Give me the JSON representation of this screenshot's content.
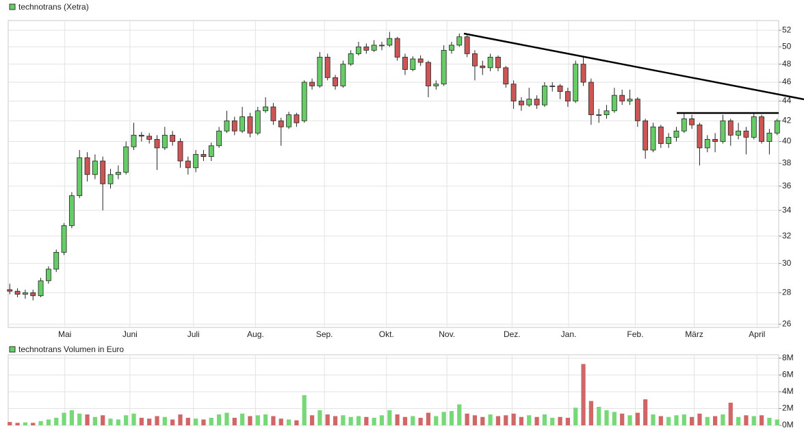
{
  "chart_data": [
    {
      "type": "candlestick",
      "title": "technotrans (Xetra)",
      "log_scale": true,
      "grid": true,
      "up_color": "#66cc66",
      "down_color": "#cc5555",
      "xlim": [
        -0.2,
        99.2
      ],
      "xticks": [
        {
          "value": 7.1,
          "label": "Mai"
        },
        {
          "value": 15.5,
          "label": "Juni"
        },
        {
          "value": 23.7,
          "label": "Juli"
        },
        {
          "value": 31.7,
          "label": "Aug."
        },
        {
          "value": 40.6,
          "label": "Sep."
        },
        {
          "value": 48.6,
          "label": "Okt."
        },
        {
          "value": 56.4,
          "label": "Nov."
        },
        {
          "value": 64.8,
          "label": "Dez."
        },
        {
          "value": 72.1,
          "label": "Jan."
        },
        {
          "value": 80.7,
          "label": "Feb."
        },
        {
          "value": 88.3,
          "label": "März"
        },
        {
          "value": 96.4,
          "label": "April"
        }
      ],
      "ylim": [
        25.8,
        53.2
      ],
      "yticks": [
        26,
        28,
        30,
        32,
        34,
        36,
        38,
        40,
        42,
        44,
        46,
        48,
        50,
        52
      ],
      "open": [
        28.2,
        28.1,
        27.9,
        28.0,
        27.8,
        28.8,
        29.6,
        30.8,
        32.8,
        35.2,
        38.5,
        37.0,
        38.2,
        36.2,
        37.0,
        37.2,
        39.5,
        40.6,
        40.5,
        40.2,
        39.4,
        40.6,
        40.0,
        38.2,
        37.6,
        38.8,
        38.6,
        39.6,
        41.0,
        42.0,
        41.0,
        42.4,
        40.8,
        43.0,
        43.4,
        42.0,
        41.4,
        42.6,
        42.0,
        46.0,
        45.6,
        48.8,
        46.5,
        45.6,
        48.0,
        49.2,
        50.0,
        49.6,
        50.2,
        50.2,
        51.0,
        48.8,
        47.4,
        48.6,
        48.2,
        45.6,
        45.8,
        49.6,
        50.2,
        51.2,
        49.2,
        47.8,
        47.6,
        48.8,
        47.6,
        45.8,
        44.0,
        43.6,
        44.2,
        43.6,
        45.6,
        45.6,
        45.0,
        44.0,
        48.0,
        46.0,
        42.6,
        42.6,
        43.0,
        44.6,
        44.0,
        44.2,
        42.0,
        39.2,
        41.4,
        39.8,
        40.4,
        41.0,
        42.2,
        41.6,
        39.4,
        40.2,
        40.0,
        42.0,
        40.6,
        41.0,
        40.4,
        42.4,
        40.0,
        40.8
      ],
      "high": [
        28.6,
        28.3,
        28.2,
        28.2,
        29.0,
        29.8,
        31.0,
        33.0,
        35.5,
        39.2,
        39.0,
        38.8,
        38.6,
        37.5,
        37.8,
        40.0,
        41.8,
        40.9,
        40.8,
        40.6,
        41.4,
        41.0,
        40.3,
        38.6,
        39.2,
        39.2,
        39.9,
        41.4,
        43.0,
        42.4,
        43.4,
        42.8,
        43.4,
        44.4,
        43.8,
        42.3,
        42.9,
        42.8,
        46.2,
        46.4,
        49.4,
        49.2,
        46.8,
        48.4,
        49.6,
        50.6,
        50.4,
        50.8,
        50.6,
        51.8,
        51.2,
        49.2,
        48.9,
        49.0,
        48.4,
        46.2,
        50.2,
        50.6,
        51.6,
        51.4,
        49.6,
        48.4,
        49.2,
        49.0,
        47.8,
        46.2,
        44.4,
        45.4,
        44.6,
        46.0,
        46.0,
        45.8,
        45.4,
        48.4,
        48.8,
        46.4,
        43.2,
        43.6,
        45.4,
        45.2,
        45.2,
        44.4,
        42.2,
        41.8,
        41.6,
        40.8,
        41.4,
        42.8,
        42.6,
        41.8,
        40.6,
        40.8,
        42.6,
        42.2,
        41.8,
        41.4,
        42.8,
        42.6,
        41.2,
        42.2
      ],
      "low": [
        27.9,
        27.7,
        27.6,
        27.5,
        27.7,
        28.6,
        29.4,
        30.6,
        32.6,
        35.0,
        36.4,
        36.6,
        34.0,
        35.8,
        36.6,
        37.0,
        39.2,
        40.0,
        39.8,
        37.4,
        39.2,
        39.6,
        37.6,
        37.0,
        37.2,
        38.2,
        38.2,
        39.4,
        40.8,
        40.6,
        40.8,
        40.4,
        40.6,
        42.8,
        41.6,
        39.6,
        41.2,
        41.4,
        41.8,
        45.2,
        45.4,
        46.2,
        45.2,
        45.4,
        47.8,
        49.0,
        49.2,
        49.4,
        49.6,
        50.0,
        48.4,
        46.8,
        47.2,
        47.8,
        44.4,
        45.2,
        45.6,
        49.2,
        50.0,
        48.8,
        46.2,
        46.8,
        47.2,
        47.2,
        45.4,
        43.2,
        43.0,
        43.4,
        43.2,
        43.4,
        45.0,
        44.2,
        43.4,
        43.8,
        45.6,
        41.6,
        41.8,
        42.2,
        42.8,
        43.6,
        43.6,
        41.4,
        38.4,
        39.0,
        39.4,
        39.4,
        40.0,
        40.8,
        41.2,
        37.8,
        39.0,
        39.0,
        39.8,
        39.6,
        40.2,
        38.8,
        40.2,
        39.8,
        38.8,
        40.6
      ],
      "close": [
        28.1,
        27.9,
        28.0,
        27.8,
        28.8,
        29.6,
        30.8,
        32.8,
        35.2,
        38.5,
        37.0,
        38.2,
        36.2,
        37.0,
        37.2,
        39.5,
        40.6,
        40.5,
        40.2,
        39.4,
        40.6,
        40.0,
        38.2,
        37.6,
        38.8,
        38.6,
        39.6,
        41.0,
        42.0,
        41.0,
        42.4,
        40.8,
        43.0,
        43.4,
        42.0,
        41.4,
        42.6,
        41.8,
        46.0,
        45.6,
        48.8,
        46.5,
        45.6,
        48.0,
        49.2,
        50.0,
        49.6,
        50.2,
        50.2,
        51.0,
        48.8,
        47.4,
        48.6,
        48.2,
        45.6,
        45.8,
        49.6,
        50.2,
        51.2,
        49.2,
        47.8,
        47.6,
        48.8,
        47.6,
        45.8,
        44.0,
        43.6,
        44.2,
        43.6,
        45.6,
        45.6,
        45.0,
        44.0,
        48.0,
        46.0,
        42.6,
        42.6,
        43.0,
        44.6,
        44.0,
        44.2,
        42.0,
        39.2,
        41.4,
        39.8,
        40.4,
        41.0,
        42.2,
        41.6,
        39.4,
        40.2,
        40.0,
        42.0,
        40.6,
        41.0,
        40.4,
        42.4,
        40.0,
        40.8,
        42.0
      ]
    },
    {
      "type": "volume",
      "title": "technotrans Volumen in Euro",
      "grid": true,
      "up_color": "#77d877",
      "down_color": "#d06666",
      "ylim": [
        0,
        8400000
      ],
      "yticks": [
        {
          "value": 0,
          "label": "0M"
        },
        {
          "value": 2000000,
          "label": "2M"
        },
        {
          "value": 4000000,
          "label": "4M"
        },
        {
          "value": 6000000,
          "label": "6M"
        },
        {
          "value": 8000000,
          "label": "8M"
        }
      ],
      "values": [
        400000,
        300000,
        350000,
        300000,
        500000,
        700000,
        900000,
        1500000,
        1800000,
        1400000,
        1300000,
        1000000,
        1200000,
        800000,
        700000,
        1200000,
        1400000,
        900000,
        800000,
        1100000,
        1000000,
        700000,
        1300000,
        900000,
        800000,
        700000,
        900000,
        1300000,
        1500000,
        900000,
        1400000,
        1100000,
        1200000,
        1300000,
        1100000,
        800000,
        700000,
        600000,
        3600000,
        1200000,
        1800000,
        1300000,
        1100000,
        1200000,
        1000000,
        1100000,
        1000000,
        900000,
        1200000,
        1800000,
        1300000,
        1000000,
        1100000,
        900000,
        1500000,
        1100000,
        1600000,
        1700000,
        2500000,
        1400000,
        1200000,
        1000000,
        1300000,
        1100000,
        1200000,
        1400000,
        1000000,
        1200000,
        1000000,
        1300000,
        900000,
        1000000,
        900000,
        2100000,
        7300000,
        2900000,
        2200000,
        1800000,
        1600000,
        1400000,
        1200000,
        1500000,
        3100000,
        1300000,
        1100000,
        1000000,
        1200000,
        1300000,
        1000000,
        1400000,
        1000000,
        1100000,
        1300000,
        2700000,
        1000000,
        1200000,
        1100000,
        1200000,
        900000,
        700000
      ]
    }
  ]
}
